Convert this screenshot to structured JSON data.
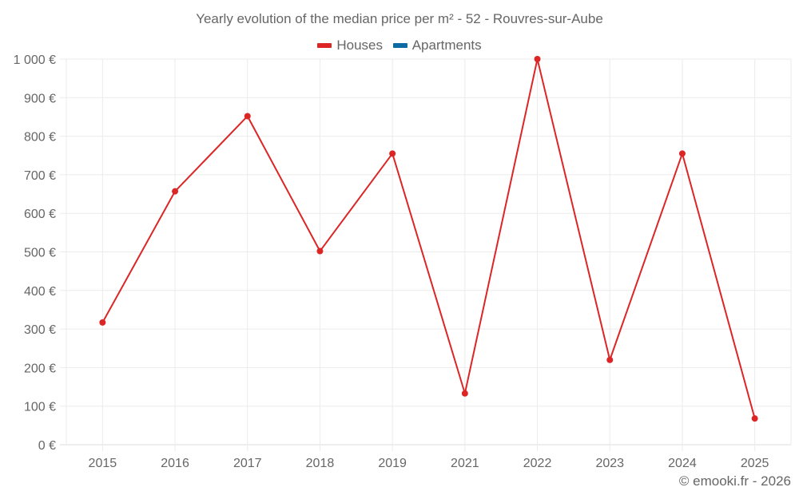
{
  "title": "Yearly evolution of the median price per m² - 52 - Rouvres-sur-Aube",
  "legend": [
    {
      "label": "Houses",
      "color": "#dc2626"
    },
    {
      "label": "Apartments",
      "color": "#0e6aa3"
    }
  ],
  "credit": "© emooki.fr - 2026",
  "chart_data": {
    "type": "line",
    "title": "Yearly evolution of the median price per m² - 52 - Rouvres-sur-Aube",
    "xlabel": "",
    "ylabel": "",
    "categories": [
      "2015",
      "2016",
      "2017",
      "2018",
      "2019",
      "2021",
      "2022",
      "2023",
      "2024",
      "2025"
    ],
    "series": [
      {
        "name": "Houses",
        "color": "#dc2626",
        "values": [
          317,
          657,
          852,
          502,
          755,
          133,
          1000,
          220,
          755,
          68
        ]
      },
      {
        "name": "Apartments",
        "color": "#0e6aa3",
        "values": []
      }
    ],
    "ylim": [
      0,
      1000
    ],
    "yticks": [
      0,
      100,
      200,
      300,
      400,
      500,
      600,
      700,
      800,
      900,
      1000
    ],
    "ytick_labels": [
      "0 €",
      "100 €",
      "200 €",
      "300 €",
      "400 €",
      "500 €",
      "600 €",
      "700 €",
      "800 €",
      "900 €",
      "1 000 €"
    ],
    "grid": true,
    "legend_position": "top"
  }
}
